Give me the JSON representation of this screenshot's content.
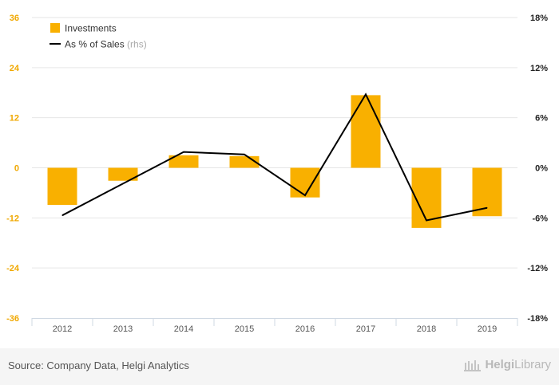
{
  "chart_data": {
    "type": "bar",
    "title": "",
    "categories": [
      "2012",
      "2013",
      "2014",
      "2015",
      "2016",
      "2017",
      "2018",
      "2019"
    ],
    "series": [
      {
        "name": "Investments",
        "type": "bar",
        "axis": "left",
        "color": "#f9b000",
        "values": [
          -8.9,
          -3.1,
          3.0,
          2.8,
          -7.1,
          17.4,
          -14.4,
          -11.6
        ]
      },
      {
        "name": "As % of Sales",
        "name_suffix": "(rhs)",
        "type": "line",
        "axis": "right",
        "color": "#000000",
        "values": [
          -5.7,
          -1.9,
          1.9,
          1.6,
          -3.3,
          8.8,
          -6.3,
          -4.8
        ]
      }
    ],
    "y_left": {
      "min": -36,
      "max": 36,
      "ticks": [
        36,
        24,
        12,
        0,
        -12,
        -24,
        -36
      ],
      "tick_labels": [
        "36",
        "24",
        "12",
        "0",
        "-12",
        "-24",
        "-36"
      ]
    },
    "y_right": {
      "min": -18,
      "max": 18,
      "ticks": [
        18,
        12,
        6,
        0,
        -6,
        -12,
        -18
      ],
      "tick_labels": [
        "18%",
        "12%",
        "6%",
        "0%",
        "-6%",
        "-12%",
        "-18%"
      ]
    },
    "grid": true,
    "legend_position": "top-left"
  },
  "footer": {
    "source": "Source: Company Data, Helgi Analytics",
    "brand_part1": "Helgi",
    "brand_part2": "Library"
  }
}
